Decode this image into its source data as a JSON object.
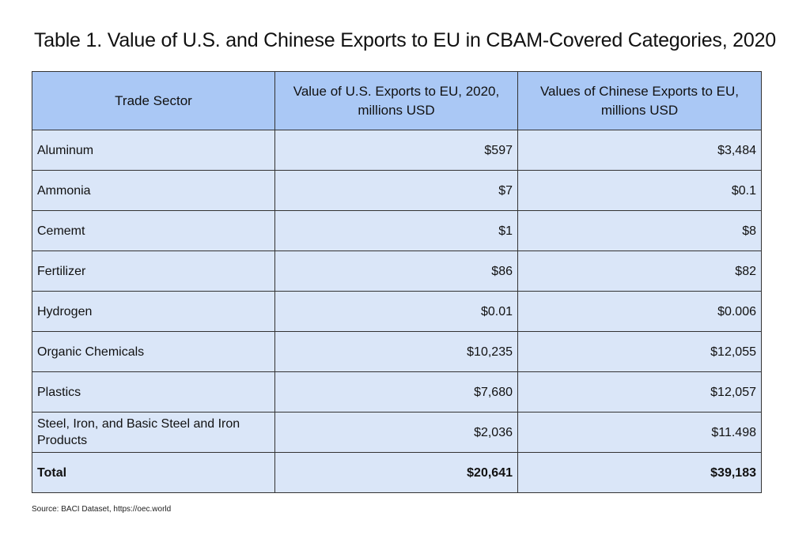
{
  "title": "Table 1. Value of U.S. and Chinese Exports to EU in CBAM-Covered Categories, 2020",
  "table": {
    "headers": [
      "Trade Sector",
      "Value of U.S. Exports to EU, 2020, millions USD",
      "Values of Chinese Exports to EU, millions USD"
    ],
    "rows": [
      {
        "sector": "Aluminum",
        "us": "$597",
        "china": "$3,484"
      },
      {
        "sector": "Ammonia",
        "us": "$7",
        "china": "$0.1"
      },
      {
        "sector": "Cememt",
        "us": "$1",
        "china": "$8"
      },
      {
        "sector": "Fertilizer",
        "us": "$86",
        "china": "$82"
      },
      {
        "sector": "Hydrogen",
        "us": "$0.01",
        "china": "$0.006"
      },
      {
        "sector": "Organic Chemicals",
        "us": "$10,235",
        "china": "$12,055"
      },
      {
        "sector": "Plastics",
        "us": "$7,680",
        "china": "$12,057"
      },
      {
        "sector": "Steel, Iron, and Basic Steel and Iron Products",
        "us": "$2,036",
        "china": "$11.498"
      }
    ],
    "total": {
      "sector": "Total",
      "us": "$20,641",
      "china": "$39,183"
    }
  },
  "source": "Source: BACI Dataset, https://oec.world",
  "colors": {
    "header_bg": "#aac8f5",
    "row_bg": "#dae6f8",
    "border": "#333333"
  }
}
